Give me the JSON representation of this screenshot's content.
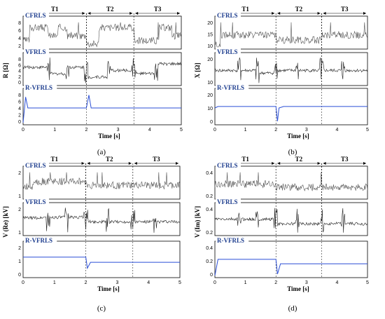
{
  "segments": [
    "T1",
    "T2",
    "T3"
  ],
  "panels": [
    {
      "id": "a",
      "ylabel": "R [Ω]",
      "caption": "(a)",
      "xlabel": "Time [s]",
      "methods": [
        "CFRLS",
        "VFRLS",
        "R-VFRLS"
      ],
      "yticks": [
        [
          "2",
          "4",
          "6",
          "8"
        ],
        [
          "0",
          "2",
          "4",
          "6",
          "8"
        ],
        [
          "0",
          "2",
          "4",
          "6",
          "8"
        ]
      ],
      "xticks": [
        "0",
        "1",
        "2",
        "3",
        "4",
        "5"
      ]
    },
    {
      "id": "b",
      "ylabel": "X [Ω]",
      "caption": "(b)",
      "xlabel": "Time [s]",
      "methods": [
        "CFRLS",
        "VFRLS",
        "R-VFRLS"
      ],
      "yticks": [
        [
          "10",
          "15",
          "20"
        ],
        [
          "10",
          "20"
        ],
        [
          "0",
          "10",
          "20"
        ]
      ],
      "xticks": [
        "0",
        "1",
        "2",
        "3",
        "4",
        "5"
      ]
    },
    {
      "id": "c",
      "ylabel": "V (Re) [kV]",
      "caption": "(c)",
      "xlabel": "Time [s]",
      "methods": [
        "CFRLS",
        "VFRLS",
        "R-VFRLS"
      ],
      "yticks": [
        [
          "1",
          "2"
        ],
        [
          "1",
          "2"
        ],
        [
          "0",
          "1",
          "2"
        ]
      ],
      "xticks": [
        "0",
        "1",
        "2",
        "3",
        "4",
        "5"
      ]
    },
    {
      "id": "d",
      "ylabel": "V (Im) [kV]",
      "caption": "(d)",
      "xlabel": "Time [s]",
      "methods": [
        "CFRLS",
        "VFRLS",
        "R-VFRLS"
      ],
      "yticks": [
        [
          "0.2",
          "0.4"
        ],
        [
          "0.2",
          "0.4"
        ],
        [
          "0",
          "0.2",
          "0.4"
        ]
      ],
      "xticks": [
        "0",
        "1",
        "2",
        "3",
        "4",
        "5"
      ]
    }
  ],
  "chart_data": [
    {
      "type": "line",
      "panel": "a",
      "ylabel": "R [Ω]",
      "xlabel": "Time [s]",
      "xlim": [
        0,
        5
      ],
      "segment_boundaries": [
        2,
        3.5
      ],
      "series": [
        {
          "name": "CFRLS",
          "ylim": [
            0,
            8
          ],
          "x": [
            0,
            0.2,
            0.2,
            0.8,
            0.8,
            1.1,
            1.1,
            1.4,
            1.4,
            2,
            2,
            2.4,
            2.4,
            3.4,
            3.5,
            3.5,
            4.3,
            4.3,
            4.7,
            4.7,
            5
          ],
          "y": [
            2,
            2,
            6,
            6,
            3.5,
            3.5,
            6,
            6,
            3.5,
            3.5,
            1,
            1,
            6,
            6,
            6,
            2,
            2,
            6,
            6,
            3.5,
            3.5
          ]
        },
        {
          "name": "VFRLS",
          "ylim": [
            0,
            8
          ],
          "x": [
            0,
            0.5,
            0.8,
            0.8,
            1.4,
            1.4,
            2,
            2,
            2.7,
            2.7,
            3.5,
            3.5,
            4.2,
            4.2,
            5
          ],
          "y": [
            5,
            5,
            5,
            3,
            3,
            5,
            5,
            2,
            2,
            4,
            4,
            3,
            3,
            6,
            6
          ]
        },
        {
          "name": "R-VFRLS",
          "ylim": [
            0,
            8
          ],
          "x": [
            0,
            0.08,
            0.15,
            0.3,
            2,
            2.08,
            2.15,
            2.3,
            5
          ],
          "y": [
            0,
            7,
            4,
            4,
            4,
            7.5,
            4,
            4,
            4
          ]
        }
      ]
    },
    {
      "type": "line",
      "panel": "b",
      "ylabel": "X [Ω]",
      "xlabel": "Time [s]",
      "xlim": [
        0,
        5
      ],
      "segment_boundaries": [
        2,
        3.5
      ],
      "series": [
        {
          "name": "CFRLS",
          "ylim": [
            5,
            20
          ],
          "x": [
            0,
            0.2,
            0.2,
            2,
            2,
            3.5,
            3.5,
            5
          ],
          "y": [
            6,
            6,
            12,
            12,
            9,
            9,
            12,
            12
          ]
        },
        {
          "name": "VFRLS",
          "ylim": [
            0,
            20
          ],
          "x": [
            0,
            1.4,
            1.4,
            2,
            2,
            5
          ],
          "y": [
            10,
            10,
            8,
            8,
            10,
            10
          ]
        },
        {
          "name": "R-VFRLS",
          "ylim": [
            0,
            20
          ],
          "x": [
            0,
            0.1,
            2,
            2.05,
            2.1,
            2.25,
            5
          ],
          "y": [
            10,
            11,
            11,
            1,
            10,
            11,
            11
          ]
        }
      ]
    },
    {
      "type": "line",
      "panel": "c",
      "ylabel": "V (Re) [kV]",
      "xlabel": "Time [s]",
      "xlim": [
        0,
        5
      ],
      "segment_boundaries": [
        2,
        3.5
      ],
      "series": [
        {
          "name": "CFRLS",
          "ylim": [
            0,
            2
          ],
          "x": [
            0,
            0.3,
            0.3,
            2,
            2,
            5
          ],
          "y": [
            0.8,
            0.8,
            1.2,
            1.2,
            0.9,
            0.9
          ]
        },
        {
          "name": "VFRLS",
          "ylim": [
            0,
            2
          ],
          "x": [
            0,
            0.6,
            0.6,
            2,
            2,
            5
          ],
          "y": [
            1.2,
            1.2,
            1.25,
            1.25,
            0.9,
            0.9
          ]
        },
        {
          "name": "R-VFRLS",
          "ylim": [
            0,
            2
          ],
          "x": [
            0,
            2,
            2.05,
            2.15,
            5
          ],
          "y": [
            1.25,
            1.25,
            0.5,
            0.9,
            0.9
          ]
        }
      ]
    },
    {
      "type": "line",
      "panel": "d",
      "ylabel": "V (Im) [kV]",
      "xlabel": "Time [s]",
      "xlim": [
        0,
        5
      ],
      "segment_boundaries": [
        2,
        3.5
      ],
      "series": [
        {
          "name": "CFRLS",
          "ylim": [
            0,
            0.4
          ],
          "x": [
            0,
            2,
            2,
            5
          ],
          "y": [
            0.2,
            0.2,
            0.15,
            0.15
          ]
        },
        {
          "name": "VFRLS",
          "ylim": [
            0,
            0.4
          ],
          "x": [
            0,
            2,
            2,
            5
          ],
          "y": [
            0.22,
            0.22,
            0.15,
            0.15
          ]
        },
        {
          "name": "R-VFRLS",
          "ylim": [
            0,
            0.4
          ],
          "x": [
            0,
            0.1,
            2,
            2.05,
            2.15,
            5
          ],
          "y": [
            0,
            0.22,
            0.22,
            0.02,
            0.16,
            0.16
          ]
        }
      ]
    }
  ]
}
